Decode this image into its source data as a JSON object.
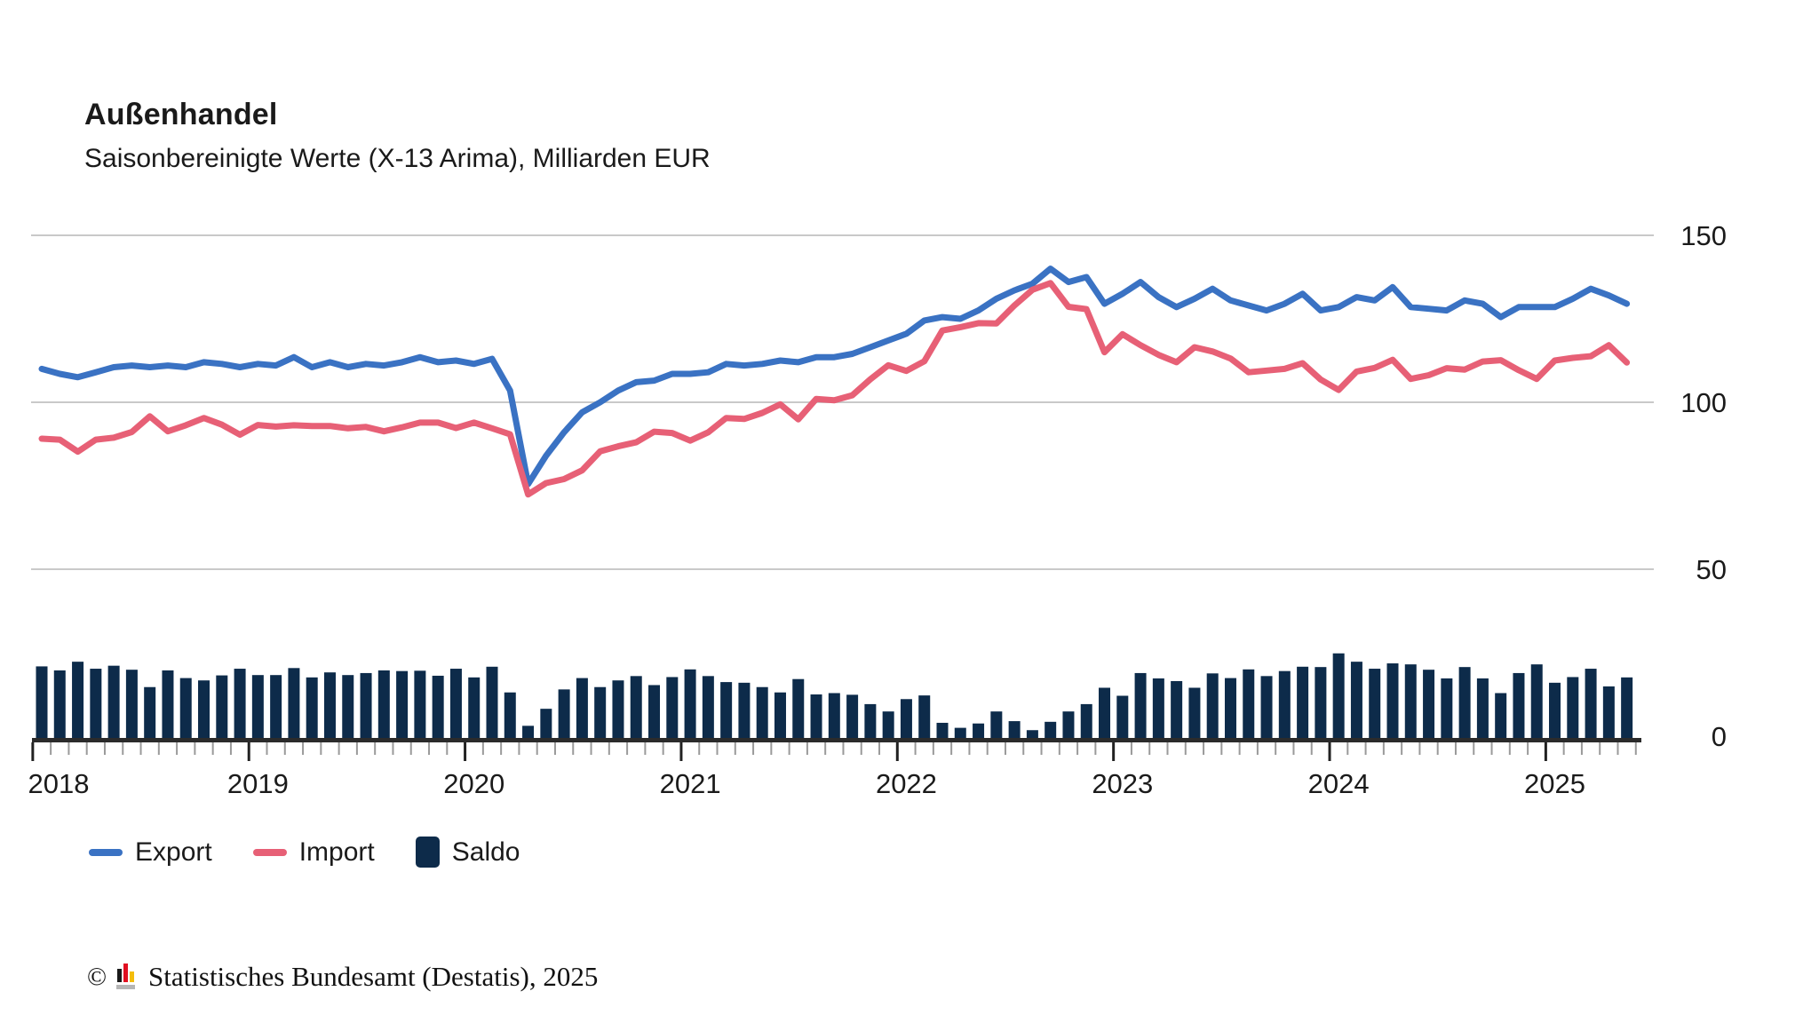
{
  "header": {
    "title": "Außenhandel",
    "subtitle": "Saisonbereinigte Werte (X-13 Arima), Milliarden EUR"
  },
  "footer": {
    "copyright_symbol": "©",
    "logo_name": "destatis-logo",
    "source_text": "Statistisches Bundesamt (Destatis), 2025"
  },
  "colors": {
    "export_blue": "#3A72C3",
    "import_red": "#E7607650",
    "import_red_solid": "#E76076",
    "saldo_navy": "#0D2B4A",
    "gridline": "#c9c9c9",
    "axis": "#2b2b2b",
    "minor_tick": "#9a9a9a",
    "text": "#1a1a1a",
    "logo_black": "#1a1a1a",
    "logo_red": "#e10f21",
    "logo_gold": "#f4bd0b",
    "logo_grey": "#b5b5b5"
  },
  "chart_data": {
    "type": "line+bar",
    "title": "Außenhandel",
    "subtitle": "Saisonbereinigte Werte (X-13 Arima), Milliarden EUR",
    "unit": "Milliarden EUR",
    "frequency": "monthly",
    "x_start": "2018-01",
    "x_end": "2025-05",
    "n_points": 89,
    "ylim": [
      0,
      150
    ],
    "yticks": [
      0,
      50,
      100,
      150
    ],
    "xticks": [
      "2018",
      "2019",
      "2020",
      "2021",
      "2022",
      "2023",
      "2024",
      "2025"
    ],
    "grid": "horizontal",
    "legend_position": "bottom",
    "series": [
      {
        "name": "Export",
        "type": "line",
        "color": "#3A72C3",
        "values": [
          110,
          108.5,
          107.5,
          109,
          110.5,
          111,
          110.5,
          111,
          110.5,
          112,
          111.5,
          110.5,
          111.5,
          111,
          113.5,
          110.5,
          112,
          110.5,
          111.5,
          111,
          112,
          113.5,
          112,
          112.5,
          111.5,
          113,
          103.5,
          75.5,
          84,
          91,
          97,
          100,
          103.5,
          106,
          106.5,
          108.5,
          108.5,
          109,
          111.5,
          111,
          111.5,
          112.5,
          112,
          113.5,
          113.5,
          114.5,
          116.5,
          118.5,
          120.5,
          124.5,
          125.5,
          125,
          127.5,
          131,
          133.5,
          135.5,
          140,
          136,
          137.5,
          129.5,
          132.5,
          136,
          131.5,
          128.5,
          131,
          134,
          130.5,
          129,
          127.5,
          129.5,
          132.5,
          127.5,
          128.5,
          131.5,
          130.5,
          134.5,
          128.5,
          128,
          127.5,
          130.5,
          129.5,
          125.5,
          128.5,
          128.5,
          128.5,
          131,
          134,
          132,
          129.5
        ]
      },
      {
        "name": "Import",
        "type": "line",
        "color": "#E76076",
        "values": [
          89.1,
          88.8,
          85.2,
          88.8,
          89.4,
          91.1,
          95.8,
          91.3,
          93.1,
          95.3,
          93.3,
          90.3,
          93.2,
          92.7,
          93.1,
          92.9,
          92.9,
          92.2,
          92.6,
          91.3,
          92.5,
          93.9,
          93.9,
          92.3,
          93.9,
          92.2,
          90.4,
          72.4,
          75.8,
          77,
          79.6,
          85.3,
          86.8,
          88,
          91.2,
          90.8,
          88.5,
          91,
          95.3,
          95,
          96.8,
          99.4,
          94.9,
          101,
          100.6,
          102.1,
          106.9,
          111.1,
          109.4,
          112.3,
          121.5,
          122.5,
          123.7,
          123.6,
          129,
          133.7,
          135.7,
          128.6,
          127.9,
          115,
          120.4,
          117.1,
          114.2,
          112,
          116.5,
          115.2,
          113.1,
          109,
          109.5,
          110,
          111.7,
          106.8,
          103.7,
          109.2,
          110.3,
          112.7,
          107,
          108.1,
          110.2,
          109.8,
          112.2,
          112.6,
          109.6,
          107,
          112.5,
          113.3,
          113.8,
          117.1,
          111.9
        ]
      },
      {
        "name": "Saldo",
        "type": "bar",
        "color": "#0D2B4A",
        "values": [
          20.9,
          19.7,
          22.3,
          20.2,
          21.1,
          19.9,
          14.7,
          19.7,
          17.4,
          16.7,
          18.2,
          20.2,
          18.3,
          18.3,
          20.4,
          17.6,
          19.1,
          18.3,
          18.9,
          19.7,
          19.5,
          19.6,
          18.1,
          20.2,
          17.6,
          20.8,
          13.1,
          3.1,
          8.2,
          14,
          17.4,
          14.7,
          16.7,
          18,
          15.3,
          17.7,
          20,
          18,
          16.2,
          16,
          14.7,
          13.1,
          17.1,
          12.5,
          12.9,
          12.4,
          9.6,
          7.4,
          11.1,
          12.2,
          4,
          2.5,
          3.8,
          7.4,
          4.5,
          1.8,
          4.3,
          7.4,
          9.6,
          14.5,
          12.1,
          18.9,
          17.3,
          16.5,
          14.5,
          18.8,
          17.4,
          20,
          18,
          19.5,
          20.8,
          20.7,
          24.8,
          22.3,
          20.2,
          21.8,
          21.5,
          19.9,
          17.3,
          20.7,
          17.3,
          12.9,
          18.9,
          21.5,
          16,
          17.7,
          20.2,
          14.9,
          17.6
        ]
      }
    ]
  }
}
